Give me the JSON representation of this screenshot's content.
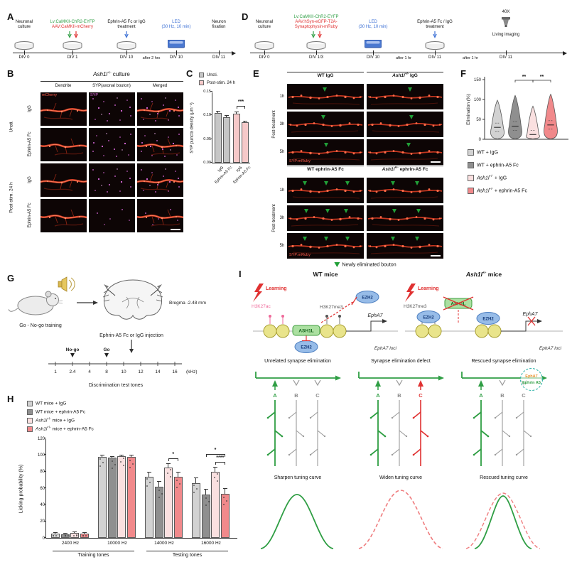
{
  "colors": {
    "wt_igg": "#d2d2d2",
    "wt_ephrin": "#8f8f8f",
    "ash_igg": "#fae0e0",
    "ash_ephrin": "#f1898b",
    "green": "#2f9e44",
    "red": "#e03131",
    "blue": "#3b6fd4",
    "magenta": "#de6ade",
    "microscopy_red": "#cf3a22"
  },
  "A": {
    "letter": "A",
    "s1a": "Neuronal",
    "s1b": "culture",
    "s1div": "DIV 0",
    "s2a": "Lv:CaMKII-ChR2-EYFP",
    "s2b": "AAV:CaMKII-mCherry",
    "s2div": "DIV 1",
    "s3a": "Ephrin-A5 Fc or IgG",
    "s3b": "treatment",
    "s3div": "DIV 10",
    "note": "after 2 hrs",
    "s4a": "LED",
    "s4b": "(30 Hz, 10 min)",
    "s4div": "DIV 10",
    "s5a": "Neuron",
    "s5b": "fixation",
    "s5div": "DIV 11"
  },
  "D": {
    "letter": "D",
    "s1a": "Neuronal",
    "s1b": "culture",
    "s1div": "DIV 0",
    "s2a": "Lv:CaMKII-ChR2-EYFP",
    "s2b": "AAV:hSyn-eGFP-T2A-",
    "s2c": "Synaptophysin-mRuby",
    "s2div": "DIV 1/3",
    "s3a": "LED",
    "s3b": "(30 Hz, 10 min)",
    "s3div": "DIV 10",
    "note1": "after 1 hr",
    "s4a": "Ephrin-A5 Fc / IgG",
    "s4b": "treatment",
    "s4div": "DIV 11",
    "note2": "after 1 hr",
    "s5a": "Living imaging",
    "s5div": "DIV 11",
    "scope": "40X"
  },
  "B": {
    "letter": "B",
    "title_gene": "Ash1l",
    "title_sup": "+/-",
    "title_rest": " culture",
    "col1": "Dendrite",
    "col2": "SYP(axonal bouton)",
    "col3": "Merged",
    "group1": "Unsti.",
    "group2": "Post-stim. 24 h",
    "row1": "IgG",
    "row2": "Ephrin-A5 Fc",
    "row3": "IgG",
    "row4": "Ephrin-A5 Fc",
    "tag_dendrite": "mCherry",
    "tag_syp": "SYP"
  },
  "C": {
    "letter": "C",
    "legend1": "Unsti.",
    "legend2": "Post-stim. 24 h"
  },
  "E": {
    "letter": "E",
    "h1": "WT IgG",
    "h2_gene": "Ash1l",
    "h2_sup": "+/-",
    "h2_rest": " IgG",
    "h3": "WT ephrin-A5 Fc",
    "h4_gene": "Ash1l",
    "h4_sup": "+/-",
    "h4_rest": " ephrin-A5 Fc",
    "side": "Post-treatment",
    "t1": "1h",
    "t2": "3h",
    "t3": "5h",
    "tag": "SYP:mRuby",
    "caption": "Newly eliminated bouton"
  },
  "F": {
    "letter": "F",
    "leg1": "WT + IgG",
    "leg2": "WT + ephrin-A5 Fc",
    "leg3_gene": "Ash1l",
    "leg3_sup": "+/-",
    "leg3_rest": " + IgG",
    "leg4_gene": "Ash1l",
    "leg4_sup": "+/-",
    "leg4_rest": " + ephrin-A5 Fc"
  },
  "G": {
    "letter": "G",
    "training": "Go - No-go training",
    "bregma": "Bregma -2.48 mm",
    "injection": "Ephrin-A5 Fc or IgG injection",
    "nogo": "No-go",
    "go": "Go",
    "tones": [
      "1",
      "2.4",
      "4",
      "8",
      "10",
      "12",
      "14",
      "16"
    ],
    "khz": "(kHz)",
    "caption": "Discrimination test tones"
  },
  "H": {
    "letter": "H",
    "leg1": "WT mice + IgG",
    "leg2": "WT mice + ephrin-A5 Fc",
    "leg3_gene": "Ash1l",
    "leg3_sup": "+/-",
    "leg3_rest": " mice + IgG",
    "leg4_gene": "Ash1l",
    "leg4_sup": "+/-",
    "leg4_rest": " mice + ephrin-A5 Fc",
    "xgroup1": "Training tones",
    "xgroup2": "Testing tones"
  },
  "I": {
    "letter": "I",
    "wt_header": "WT mice",
    "ash_gene": "Ash1l",
    "ash_sup": "+/-",
    "ash_rest": " mice",
    "learning": "Learning",
    "h3k27ac": "H3K27ac",
    "h3k27me3": "H3K27me3",
    "ash1l": "ASH1L",
    "ezh2": "EZH2",
    "epha7": "EphA7",
    "epha7_loci": "EphA7 loci",
    "col1": "Unrelated synapse elimination",
    "col2": "Synapse elimination defect",
    "col3": "Rescued synapse elimination",
    "a": "A",
    "b": "B",
    "c": "C",
    "epha7_tag": "EphA7",
    "ephrin_tag": "Ephrin A5",
    "curve1": "Sharpen tuning curve",
    "curve2": "Widen tuning curve",
    "curve3": "Rescued tuning curve"
  },
  "chart_data": [
    {
      "id": "C",
      "type": "bar",
      "ylabel": "SYP puncta density (μm⁻¹)",
      "ylim": [
        0,
        0.15
      ],
      "yticks": [
        "0.00",
        "0.05",
        "0.10",
        "0.15"
      ],
      "categories": [
        "IgG",
        "Ephrin-A5 Fc",
        "IgG",
        "Ephrin-A5 Fc"
      ],
      "conditions": [
        "Unsti.",
        "Unsti.",
        "Post-stim. 24 h",
        "Post-stim. 24 h"
      ],
      "values": [
        0.105,
        0.096,
        0.104,
        0.085
      ],
      "errors": [
        0.005,
        0.005,
        0.004,
        0.004
      ],
      "colors": [
        "#c6c6c6",
        "#c6c6c6",
        "#f6c9c9",
        "#f6c9c9"
      ],
      "significance": [
        {
          "bars": [
            2,
            3
          ],
          "label": "***"
        }
      ]
    },
    {
      "id": "F",
      "type": "violin",
      "ylabel": "Elimination (%)",
      "ylim": [
        0,
        150
      ],
      "yticks": [
        "0",
        "50",
        "100",
        "150"
      ],
      "groups": [
        "WT + IgG",
        "WT + ephrin-A5 Fc",
        "Ash1l+/- + IgG",
        "Ash1l+/- + ephrin-A5 Fc"
      ],
      "medians": [
        30,
        33,
        12,
        36
      ],
      "maxima": [
        100,
        112,
        85,
        115
      ],
      "colors": [
        "#d2d2d2",
        "#8f8f8f",
        "#fae0e0",
        "#f1898b"
      ],
      "significance": [
        {
          "groups": [
            1,
            2
          ],
          "label": "**"
        },
        {
          "groups": [
            2,
            3
          ],
          "label": "**"
        }
      ]
    },
    {
      "id": "H",
      "type": "bar",
      "ylabel": "Licking probability (%)",
      "ylim": [
        0,
        120
      ],
      "yticks": [
        "0",
        "20",
        "40",
        "60",
        "80",
        "100",
        "120"
      ],
      "categories": [
        "2400 Hz",
        "10000 Hz",
        "14000 Hz",
        "16000 Hz"
      ],
      "category_groups": [
        {
          "label": "Training tones",
          "span": [
            0,
            1
          ]
        },
        {
          "label": "Testing tones",
          "span": [
            2,
            3
          ]
        }
      ],
      "series": [
        {
          "name": "WT mice + IgG",
          "color": "#d2d2d2",
          "values": [
            5,
            98,
            74,
            66
          ],
          "errors": [
            2,
            2,
            6,
            7
          ]
        },
        {
          "name": "WT mice + ephrin-A5 Fc",
          "color": "#8f8f8f",
          "values": [
            4,
            97,
            62,
            52
          ],
          "errors": [
            2,
            2,
            7,
            7
          ]
        },
        {
          "name": "Ash1l+/- mice + IgG",
          "color": "#fae0e0",
          "values": [
            6,
            99,
            85,
            80
          ],
          "errors": [
            2,
            1,
            5,
            6
          ]
        },
        {
          "name": "Ash1l+/- mice + ephrin-A5 Fc",
          "color": "#f1898b",
          "values": [
            5,
            98,
            74,
            53
          ],
          "errors": [
            2,
            2,
            6,
            7
          ]
        }
      ],
      "significance": [
        {
          "group": 2,
          "bars": [
            2,
            3
          ],
          "label": "*",
          "level": 0
        },
        {
          "group": 3,
          "bars": [
            1,
            3
          ],
          "label": "*",
          "level": 1
        },
        {
          "group": 3,
          "bars": [
            2,
            3
          ],
          "label": "****",
          "level": 0
        }
      ]
    }
  ]
}
